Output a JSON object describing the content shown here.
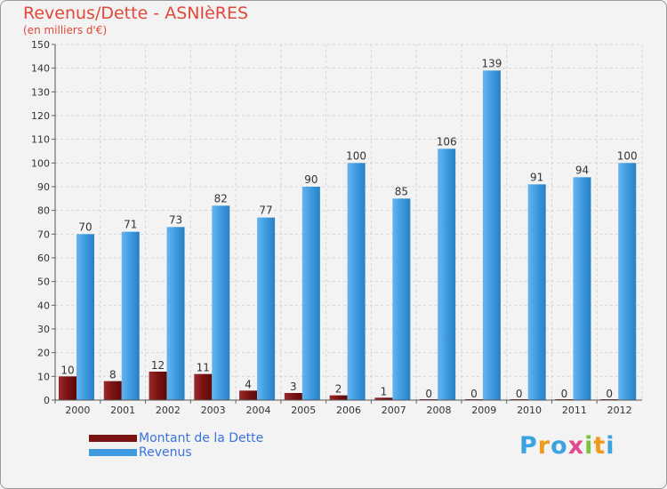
{
  "header": {
    "title": "Revenus/Dette - ASNIèRES",
    "subtitle": "(en milliers d'€)"
  },
  "colors": {
    "dette": "#7a1212",
    "revenus": "#3e9be0",
    "title": "#e2483a",
    "legend_text": "#3a73e0"
  },
  "legend": {
    "dette_label": "Montant de la Dette",
    "revenus_label": "Revenus"
  },
  "logo": {
    "letters": [
      "P",
      "r",
      "o",
      "x",
      "i",
      "t",
      "i"
    ],
    "colors": [
      "#3aa3e0",
      "#f09a1c",
      "#3aa3e0",
      "#e04a8c",
      "#7cc242",
      "#f09a1c",
      "#3aa3e0"
    ]
  },
  "chart_data": {
    "type": "bar",
    "categories": [
      "2000",
      "2001",
      "2002",
      "2003",
      "2004",
      "2005",
      "2006",
      "2007",
      "2008",
      "2009",
      "2010",
      "2011",
      "2012"
    ],
    "series": [
      {
        "name": "Montant de la Dette",
        "values": [
          10,
          8,
          12,
          11,
          4,
          3,
          2,
          1,
          0,
          0,
          0,
          0,
          0
        ]
      },
      {
        "name": "Revenus",
        "values": [
          70,
          71,
          73,
          82,
          77,
          90,
          100,
          85,
          106,
          139,
          91,
          94,
          100
        ]
      }
    ],
    "ylim": [
      0,
      150
    ],
    "yticks": [
      0,
      10,
      20,
      30,
      40,
      50,
      60,
      70,
      80,
      90,
      100,
      110,
      120,
      130,
      140,
      150
    ],
    "grid": true,
    "legend_position": "bottom-left"
  }
}
